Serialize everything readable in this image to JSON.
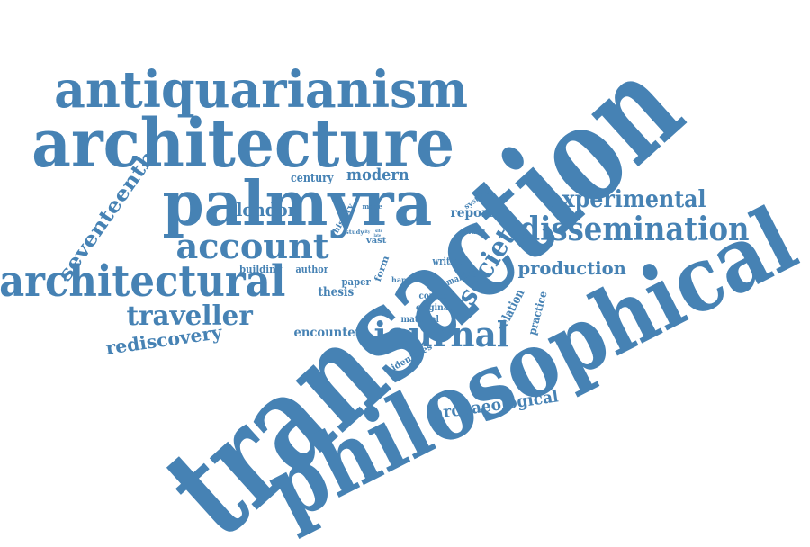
{
  "style": {
    "word_color": "#4682b4",
    "background": "#ffffff"
  },
  "words": [
    {
      "id": "transaction",
      "text": "transaction"
    },
    {
      "id": "philosophical",
      "text": "philosophical"
    },
    {
      "id": "architecture",
      "text": "architecture"
    },
    {
      "id": "antiquarianism",
      "text": "antiquarianism"
    },
    {
      "id": "palmyra",
      "text": "palmyra"
    },
    {
      "id": "architectural",
      "text": "architectural"
    },
    {
      "id": "dissemination",
      "text": "dissemination"
    },
    {
      "id": "account",
      "text": "account"
    },
    {
      "id": "experimental",
      "text": "experimental"
    },
    {
      "id": "journal",
      "text": "journal"
    },
    {
      "id": "traveller",
      "text": "traveller"
    },
    {
      "id": "seventeenth",
      "text": "seventeenth"
    },
    {
      "id": "society",
      "text": "society"
    },
    {
      "id": "production",
      "text": "production"
    },
    {
      "id": "london",
      "text": "london"
    },
    {
      "id": "rediscovery",
      "text": "rediscovery"
    },
    {
      "id": "modern",
      "text": "modern"
    },
    {
      "id": "archaeological",
      "text": "archaeological"
    },
    {
      "id": "century",
      "text": "century"
    },
    {
      "id": "report",
      "text": "report"
    },
    {
      "id": "encounter",
      "text": "encounter"
    },
    {
      "id": "thesis",
      "text": "thesis"
    },
    {
      "id": "relation",
      "text": "relation"
    },
    {
      "id": "practice",
      "text": "practice"
    },
    {
      "id": "building",
      "text": "building"
    },
    {
      "id": "author",
      "text": "author"
    },
    {
      "id": "paper",
      "text": "paper"
    },
    {
      "id": "writing",
      "text": "writing"
    },
    {
      "id": "making",
      "text": "making"
    },
    {
      "id": "content",
      "text": "content"
    },
    {
      "id": "original",
      "text": "original"
    },
    {
      "id": "material",
      "text": "material"
    },
    {
      "id": "identifies",
      "text": "identifies"
    },
    {
      "id": "history",
      "text": "history"
    },
    {
      "id": "form",
      "text": "form"
    },
    {
      "id": "vast",
      "text": "vast"
    },
    {
      "id": "hand",
      "text": "hand"
    },
    {
      "id": "system",
      "text": "system"
    },
    {
      "id": "travel",
      "text": "travel"
    },
    {
      "id": "study",
      "text": "study"
    },
    {
      "id": "mode",
      "text": "mode"
    },
    {
      "id": "city",
      "text": "city"
    },
    {
      "id": "site",
      "text": "site"
    },
    {
      "id": "late",
      "text": "late"
    }
  ]
}
